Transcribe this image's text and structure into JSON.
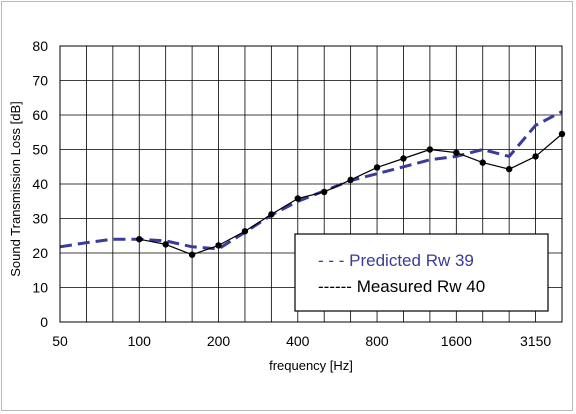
{
  "chart_data": {
    "type": "line",
    "title": "",
    "xlabel": "frequency [Hz]",
    "ylabel": "Sound Transmission Loss [dB]",
    "ylim": [
      0,
      80
    ],
    "yticks": [
      0,
      10,
      20,
      30,
      40,
      50,
      60,
      70,
      80
    ],
    "xscale": "third-octave band index",
    "x_categories": [
      "50",
      "63",
      "80",
      "100",
      "125",
      "160",
      "200",
      "250",
      "315",
      "400",
      "500",
      "630",
      "800",
      "1000",
      "1250",
      "1600",
      "2000",
      "2500",
      "3150",
      "4000"
    ],
    "x_tick_labels": [
      "50",
      "100",
      "200",
      "400",
      "800",
      "1600",
      "3150"
    ],
    "grid": true,
    "legend_position": "lower-right",
    "series": [
      {
        "name": "Predicted Rw 39",
        "legend_label": "- - - Predicted Rw 39",
        "color": "#3a3b9a",
        "style": "dashed",
        "x": [
          "50",
          "63",
          "80",
          "100",
          "125",
          "160",
          "200",
          "250",
          "315",
          "400",
          "500",
          "630",
          "800",
          "1000",
          "1250",
          "1600",
          "2000",
          "2500",
          "3150",
          "4000"
        ],
        "values": [
          21.8,
          23,
          24,
          24,
          23.5,
          21.8,
          21.2,
          26,
          31,
          35,
          38,
          41,
          43,
          45,
          47,
          48,
          50,
          48,
          57,
          61
        ]
      },
      {
        "name": "Measured Rw 40",
        "legend_label": "------ Measured Rw 40",
        "color": "#000000",
        "style": "solid",
        "markers": true,
        "x": [
          "100",
          "125",
          "160",
          "200",
          "250",
          "315",
          "400",
          "500",
          "630",
          "800",
          "1000",
          "1250",
          "1600",
          "2000",
          "2500",
          "3150",
          "4000"
        ],
        "values": [
          24,
          22.5,
          19.5,
          22.2,
          26.3,
          31.2,
          35.8,
          37.7,
          41.2,
          44.8,
          47.4,
          50,
          49.1,
          46.2,
          44.3,
          48,
          54.5
        ]
      }
    ]
  }
}
